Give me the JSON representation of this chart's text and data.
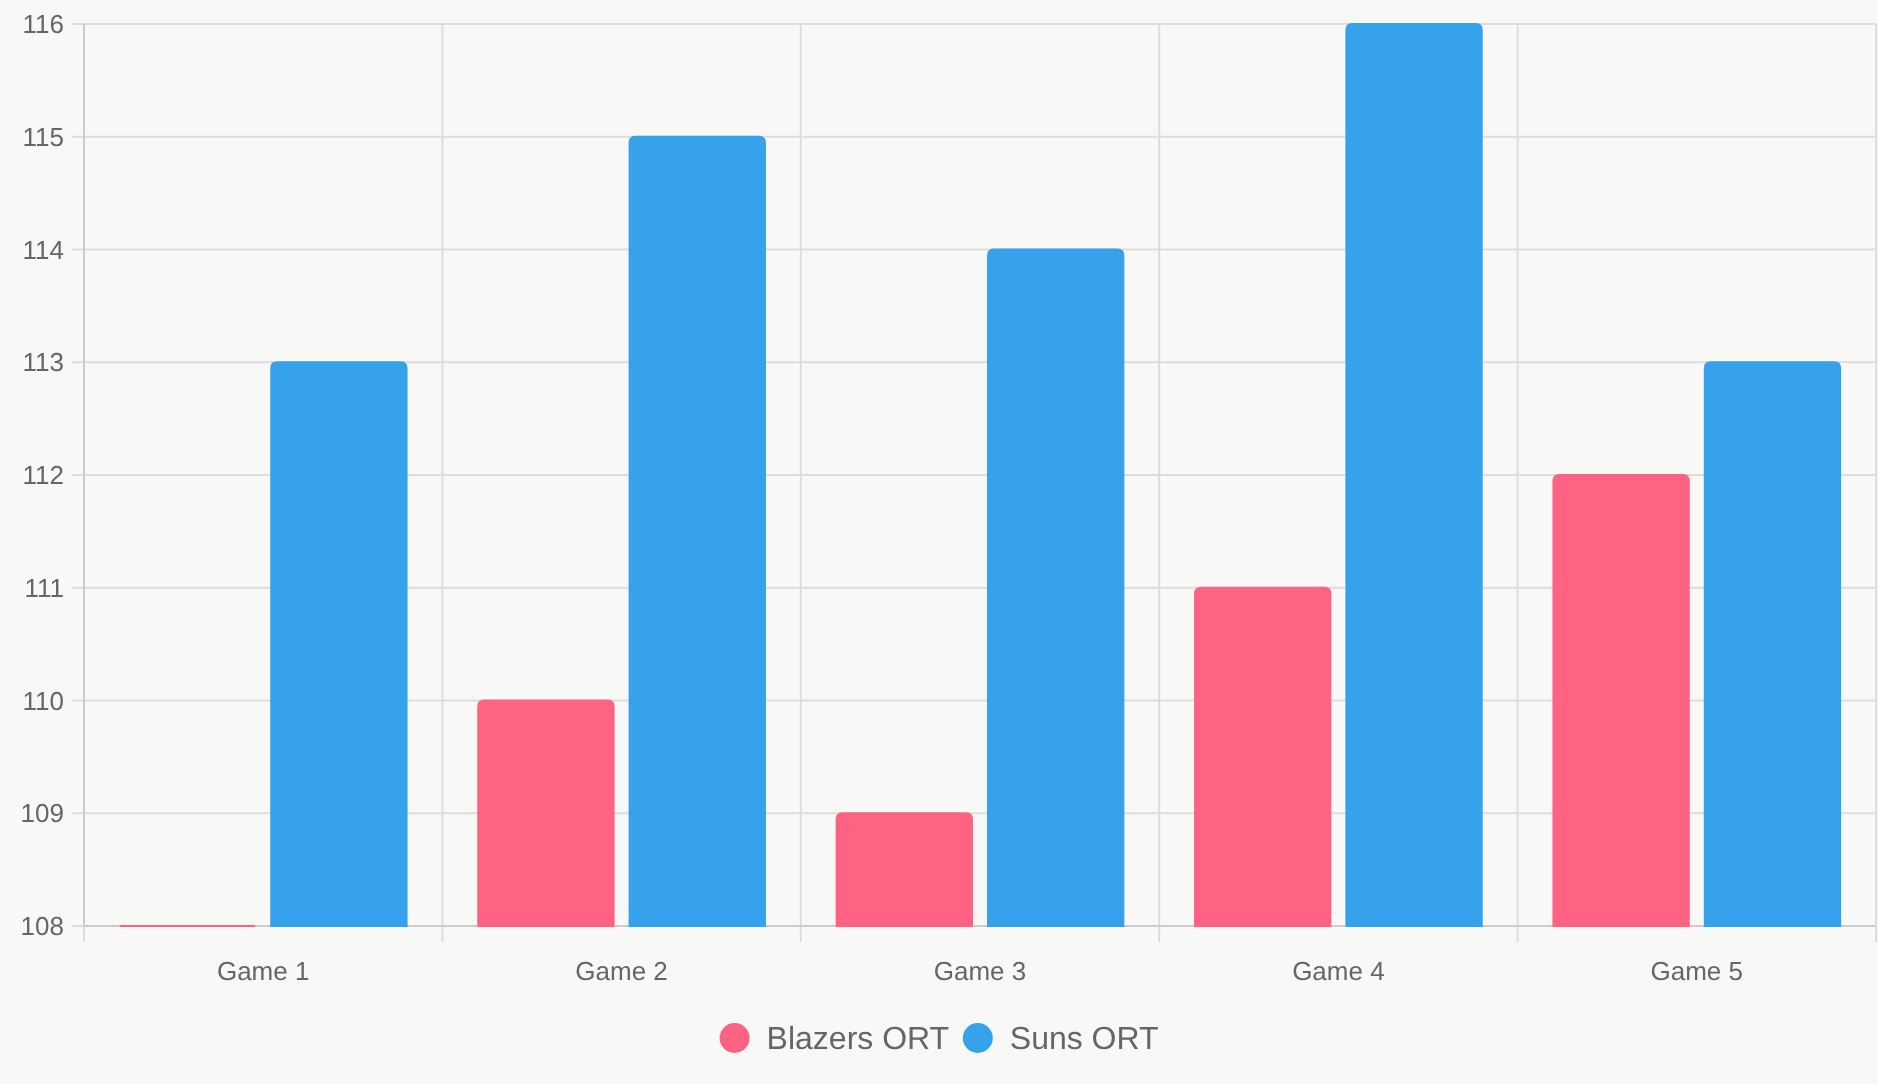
{
  "chart_data": {
    "type": "bar",
    "categories": [
      "Game 1",
      "Game 2",
      "Game 3",
      "Game 4",
      "Game 5"
    ],
    "series": [
      {
        "name": "Blazers ORT",
        "color": "#ff6384",
        "values": [
          108,
          110,
          109,
          111,
          112
        ]
      },
      {
        "name": "Suns ORT",
        "color": "#36a2eb",
        "values": [
          113,
          115,
          114,
          116,
          113
        ]
      }
    ],
    "ylim": [
      108,
      116
    ],
    "yticks": [
      108,
      109,
      110,
      111,
      112,
      113,
      114,
      115,
      116
    ],
    "grid": true,
    "legend": "bottom"
  }
}
